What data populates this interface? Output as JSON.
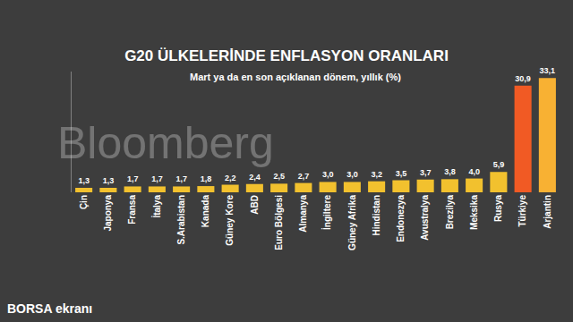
{
  "chart_data": {
    "type": "bar",
    "title": "G20 ÜLKELERİNDE ENFLASYON ORANLARI",
    "subtitle": "Mart ya da en son açıklanan dönem, yıllık (%)",
    "categories": [
      "Çin",
      "Japonya",
      "Fransa",
      "İtalya",
      "S.Arabistan",
      "Kanada",
      "Güney Kore",
      "ABD",
      "Euro Bölgesi",
      "Almanya",
      "İngiltere",
      "Güney Afrika",
      "Hindistan",
      "Endonezya",
      "Avustralya",
      "Brezilya",
      "Meksika",
      "Rusya",
      "Türkiye",
      "Arjantin"
    ],
    "values": [
      1.3,
      1.3,
      1.7,
      1.7,
      1.7,
      1.8,
      2.2,
      2.4,
      2.5,
      2.7,
      3.0,
      3.0,
      3.2,
      3.5,
      3.7,
      3.8,
      4.0,
      5.9,
      30.9,
      33.1
    ],
    "value_labels": [
      "1,3",
      "1,3",
      "1,7",
      "1,7",
      "1,7",
      "1,8",
      "2,2",
      "2,4",
      "2,5",
      "2,7",
      "3,0",
      "3,0",
      "3,2",
      "3,5",
      "3,7",
      "3,8",
      "4,0",
      "5,9",
      "30,9",
      "33,1"
    ],
    "colors": [
      "#f2c12e",
      "#f2c12e",
      "#f2c12e",
      "#f2c12e",
      "#f2c12e",
      "#f2c12e",
      "#f2c12e",
      "#f2c12e",
      "#f2c12e",
      "#f2c12e",
      "#f2c12e",
      "#f2c12e",
      "#f2c12e",
      "#f2c12e",
      "#f2c12e",
      "#f2c12e",
      "#f2c12e",
      "#f2c12e",
      "#f15a24",
      "#f8b133"
    ],
    "ylim": [
      0,
      35
    ],
    "yticks": [],
    "grid": false,
    "data_labels": true,
    "tick_labels": "x",
    "annotations": [
      "Bloomberg",
      "BORSA ekranı"
    ]
  }
}
